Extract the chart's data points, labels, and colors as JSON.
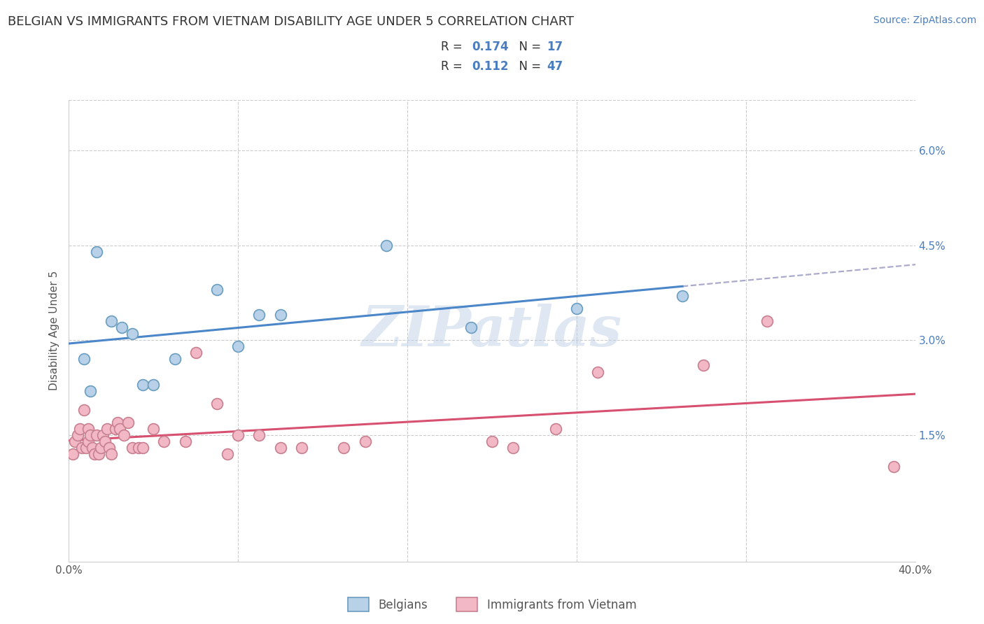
{
  "title": "BELGIAN VS IMMIGRANTS FROM VIETNAM DISABILITY AGE UNDER 5 CORRELATION CHART",
  "source": "Source: ZipAtlas.com",
  "ylabel": "Disability Age Under 5",
  "legend_label_1": "Belgians",
  "legend_label_2": "Immigrants from Vietnam",
  "r1": 0.174,
  "n1": 17,
  "r2": 0.112,
  "n2": 47,
  "color1": "#b8d0e8",
  "color1_line": "#4a86c8",
  "color1_edge": "#6a9ec0",
  "color2": "#f2b8c6",
  "color2_line": "#d85070",
  "color2_edge": "#c88090",
  "xlim": [
    0.0,
    0.4
  ],
  "ylim": [
    -0.005,
    0.068
  ],
  "yticks": [
    0.015,
    0.03,
    0.045,
    0.06
  ],
  "ytick_labels": [
    "1.5%",
    "3.0%",
    "4.5%",
    "6.0%"
  ],
  "xticks": [
    0.0,
    0.08,
    0.16,
    0.24,
    0.32,
    0.4
  ],
  "xtick_labels": [
    "0.0%",
    "",
    "",
    "",
    "",
    "40.0%"
  ],
  "blue_x": [
    0.007,
    0.01,
    0.013,
    0.02,
    0.025,
    0.03,
    0.035,
    0.04,
    0.05,
    0.07,
    0.08,
    0.09,
    0.1,
    0.15,
    0.19,
    0.24,
    0.29
  ],
  "blue_y": [
    0.027,
    0.022,
    0.044,
    0.033,
    0.032,
    0.031,
    0.023,
    0.023,
    0.027,
    0.038,
    0.029,
    0.034,
    0.034,
    0.045,
    0.032,
    0.035,
    0.037
  ],
  "pink_x": [
    0.002,
    0.003,
    0.004,
    0.005,
    0.006,
    0.007,
    0.008,
    0.009,
    0.009,
    0.01,
    0.011,
    0.012,
    0.013,
    0.014,
    0.015,
    0.016,
    0.017,
    0.018,
    0.019,
    0.02,
    0.022,
    0.023,
    0.024,
    0.026,
    0.028,
    0.03,
    0.033,
    0.035,
    0.04,
    0.045,
    0.055,
    0.06,
    0.07,
    0.075,
    0.08,
    0.09,
    0.1,
    0.11,
    0.13,
    0.14,
    0.2,
    0.21,
    0.23,
    0.25,
    0.3,
    0.33,
    0.39
  ],
  "pink_y": [
    0.012,
    0.014,
    0.015,
    0.016,
    0.013,
    0.019,
    0.013,
    0.014,
    0.016,
    0.015,
    0.013,
    0.012,
    0.015,
    0.012,
    0.013,
    0.015,
    0.014,
    0.016,
    0.013,
    0.012,
    0.016,
    0.017,
    0.016,
    0.015,
    0.017,
    0.013,
    0.013,
    0.013,
    0.016,
    0.014,
    0.014,
    0.028,
    0.02,
    0.012,
    0.015,
    0.015,
    0.013,
    0.013,
    0.013,
    0.014,
    0.014,
    0.013,
    0.016,
    0.025,
    0.026,
    0.033,
    0.01
  ],
  "watermark_text": "ZIPatlas",
  "background_color": "#ffffff",
  "grid_color": "#cccccc",
  "title_fontsize": 13,
  "axis_label_fontsize": 11,
  "tick_fontsize": 11,
  "legend_fontsize": 12,
  "source_fontsize": 10
}
